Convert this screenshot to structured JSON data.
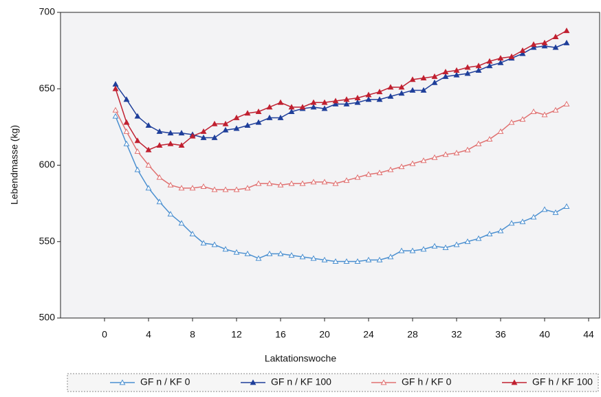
{
  "chart_data": {
    "type": "line",
    "x_label": "Laktationswoche",
    "y_label": "Lebendmasse (kg)",
    "x": [
      1,
      2,
      3,
      4,
      5,
      6,
      7,
      8,
      9,
      10,
      11,
      12,
      13,
      14,
      15,
      16,
      17,
      18,
      19,
      20,
      21,
      22,
      23,
      24,
      25,
      26,
      27,
      28,
      29,
      30,
      31,
      32,
      33,
      34,
      35,
      36,
      37,
      38,
      39,
      40,
      41,
      42
    ],
    "xlim": [
      -4,
      45
    ],
    "xticks": [
      0,
      4,
      8,
      12,
      16,
      20,
      24,
      28,
      32,
      36,
      40,
      44
    ],
    "ylim": [
      500,
      700
    ],
    "yticks": [
      500,
      550,
      600,
      650,
      700
    ],
    "grid": false,
    "legend": "bottom",
    "series": [
      {
        "name": "GF n / KF 0",
        "color": "#4a8fd0",
        "filled": false,
        "values": [
          632,
          614,
          597,
          585,
          576,
          568,
          562,
          555,
          549,
          548,
          545,
          543,
          542,
          539,
          542,
          542,
          541,
          540,
          539,
          538,
          537,
          537,
          537,
          538,
          538,
          540,
          544,
          544,
          545,
          547,
          546,
          548,
          550,
          552,
          555,
          557,
          562,
          563,
          566,
          571,
          569,
          573
        ]
      },
      {
        "name": "GF n / KF 100",
        "color": "#1f3f9a",
        "filled": true,
        "values": [
          653,
          643,
          632,
          626,
          622,
          621,
          621,
          620,
          618,
          618,
          623,
          624,
          626,
          628,
          631,
          631,
          635,
          637,
          638,
          637,
          640,
          640,
          641,
          643,
          643,
          645,
          647,
          649,
          649,
          654,
          658,
          659,
          660,
          662,
          665,
          667,
          670,
          673,
          677,
          678,
          677,
          680
        ]
      },
      {
        "name": "GF h / KF 0",
        "color": "#e07070",
        "filled": false,
        "values": [
          636,
          622,
          609,
          600,
          592,
          587,
          585,
          585,
          586,
          584,
          584,
          584,
          585,
          588,
          588,
          587,
          588,
          588,
          589,
          589,
          588,
          590,
          592,
          594,
          595,
          597,
          599,
          601,
          603,
          605,
          607,
          608,
          610,
          614,
          617,
          622,
          628,
          630,
          635,
          633,
          636,
          640
        ]
      },
      {
        "name": "GF h / KF 100",
        "color": "#c02030",
        "filled": true,
        "values": [
          650,
          628,
          616,
          610,
          613,
          614,
          613,
          619,
          622,
          627,
          627,
          631,
          634,
          635,
          638,
          641,
          638,
          638,
          641,
          641,
          642,
          643,
          644,
          646,
          648,
          651,
          651,
          656,
          657,
          658,
          661,
          662,
          664,
          665,
          668,
          670,
          671,
          675,
          679,
          680,
          684,
          688
        ]
      }
    ]
  }
}
